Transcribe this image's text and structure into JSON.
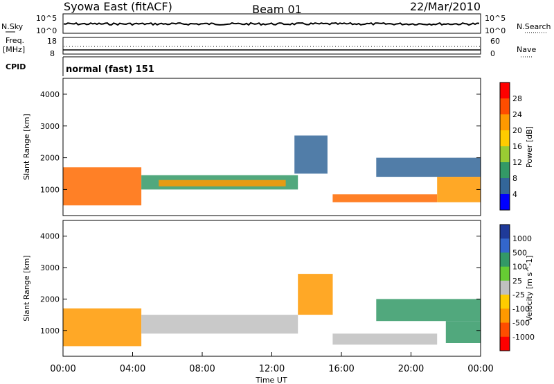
{
  "header": {
    "station": "Syowa East (fitACF)",
    "beam": "Beam 01",
    "date": "22/Mar/2010"
  },
  "top_panels": {
    "nsky_label": "N.Sky",
    "nsky_ticks": [
      "10^5",
      "10^0"
    ],
    "nsearch_label": "N.Search",
    "nsearch_ticks": [
      "10^5",
      "10^0"
    ],
    "freq_label_1": "Freq.",
    "freq_label_2": "[MHz]",
    "freq_ticks": [
      "18",
      "8"
    ],
    "nave_label": "Nave",
    "nave_ticks": [
      "60",
      "0"
    ],
    "cpid_label": "CPID",
    "cpid_value": "normal (fast) 151"
  },
  "chart_data": [
    {
      "type": "heatmap",
      "name": "power",
      "ylabel": "Slant Range [km]",
      "yticks": [
        "4000",
        "3000",
        "2000",
        "1000"
      ],
      "ylim": [
        180,
        4500
      ],
      "xlim": [
        0,
        24
      ],
      "colorbar_label": "Power [dB]",
      "colorbar_ticks": [
        "28",
        "24",
        "20",
        "16",
        "12",
        "8",
        "4"
      ],
      "colorbar_colors": [
        "#ff0000",
        "#ff4d00",
        "#ff9900",
        "#ffcc00",
        "#99cc33",
        "#339966",
        "#336699",
        "#0000ff"
      ],
      "bands": [
        {
          "t0": 0.0,
          "t1": 4.5,
          "r0": 500,
          "r1": 1700,
          "color": "#ff6a00"
        },
        {
          "t0": 4.5,
          "t1": 13.5,
          "r0": 1000,
          "r1": 1450,
          "color": "#339966"
        },
        {
          "t0": 5.5,
          "t1": 12.8,
          "r0": 1100,
          "r1": 1300,
          "color": "#ff9900"
        },
        {
          "t0": 13.3,
          "t1": 15.2,
          "r0": 1500,
          "r1": 2700,
          "color": "#336699"
        },
        {
          "t0": 15.5,
          "t1": 21.5,
          "r0": 600,
          "r1": 850,
          "color": "#ff6a00"
        },
        {
          "t0": 18.0,
          "t1": 24.0,
          "r0": 1400,
          "r1": 2000,
          "color": "#336699"
        },
        {
          "t0": 21.5,
          "t1": 24.0,
          "r0": 600,
          "r1": 1400,
          "color": "#ff9900"
        }
      ]
    },
    {
      "type": "heatmap",
      "name": "velocity",
      "ylabel": "Slant Range [km]",
      "yticks": [
        "4000",
        "3000",
        "2000",
        "1000"
      ],
      "ylim": [
        180,
        4500
      ],
      "xlim": [
        0,
        24
      ],
      "xlabel": "Time UT",
      "xticks": [
        "00:00",
        "04:00",
        "08:00",
        "12:00",
        "16:00",
        "20:00",
        "00:00"
      ],
      "colorbar_label": "Velocity [m s^-1]",
      "colorbar_ticks": [
        "1000",
        "500",
        "100",
        "25",
        "-25",
        "-100",
        "-500",
        "-1000"
      ],
      "colorbar_colors": [
        "#1f3a99",
        "#3366cc",
        "#339966",
        "#66cc33",
        "#c0c0c0",
        "#ffcc00",
        "#ff9900",
        "#ff4d00",
        "#ff0000"
      ],
      "bands": [
        {
          "t0": 0.0,
          "t1": 4.5,
          "r0": 500,
          "r1": 1700,
          "color": "#ff9900"
        },
        {
          "t0": 4.5,
          "t1": 13.5,
          "r0": 900,
          "r1": 1500,
          "color": "#c0c0c0"
        },
        {
          "t0": 13.5,
          "t1": 15.5,
          "r0": 1500,
          "r1": 2800,
          "color": "#ff9900"
        },
        {
          "t0": 15.5,
          "t1": 21.5,
          "r0": 550,
          "r1": 900,
          "color": "#c0c0c0"
        },
        {
          "t0": 18.0,
          "t1": 24.0,
          "r0": 1300,
          "r1": 2000,
          "color": "#339966"
        },
        {
          "t0": 22.0,
          "t1": 24.0,
          "r0": 600,
          "r1": 1300,
          "color": "#339966"
        }
      ]
    }
  ]
}
